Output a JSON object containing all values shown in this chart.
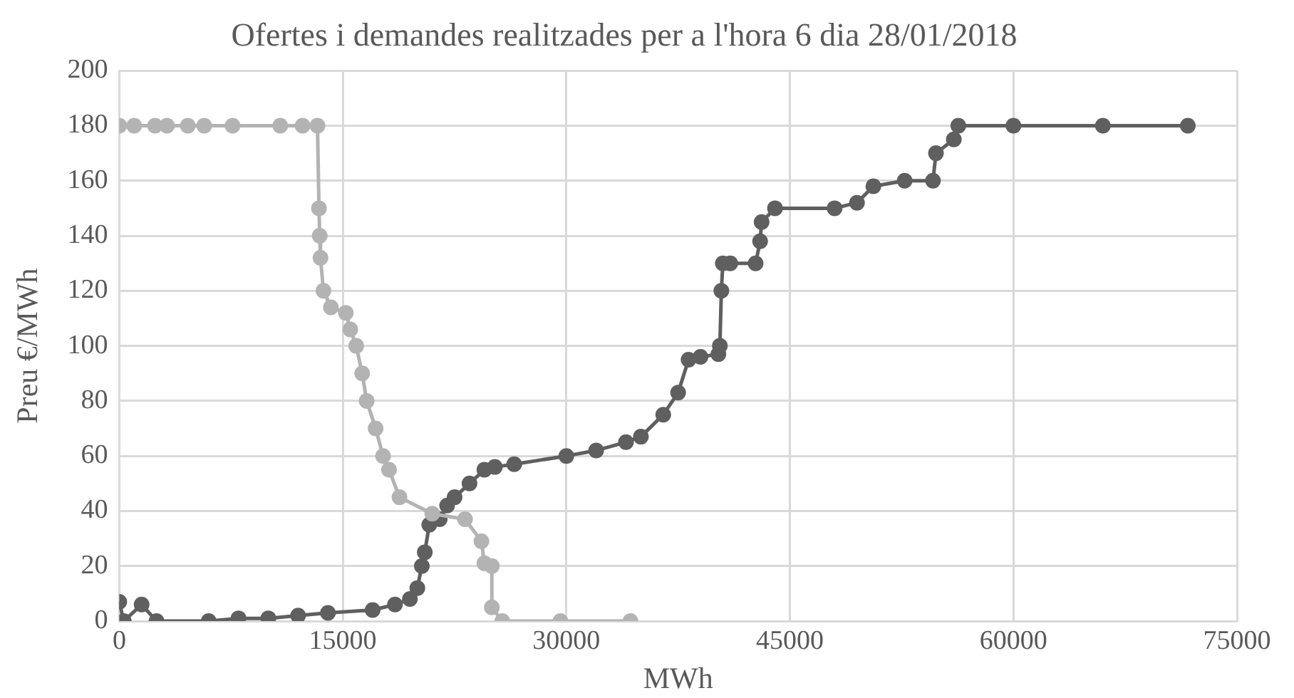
{
  "chart_data": {
    "type": "line",
    "title": "Ofertes i demandes realitzades per a l'hora 6 dia 28/01/2018",
    "xlabel": "MWh",
    "ylabel": "Preu €/MWh",
    "xlim": [
      0,
      75000
    ],
    "xticks": [
      0,
      15000,
      30000,
      45000,
      60000,
      75000
    ],
    "ylim": [
      0,
      200
    ],
    "yticks": [
      0,
      20,
      40,
      60,
      80,
      100,
      120,
      140,
      160,
      180,
      200
    ],
    "grid": true,
    "legend": false,
    "marker": "circle",
    "line_style": "solid",
    "series": [
      {
        "color": "#5f5f5f",
        "x": [
          0,
          300,
          1500,
          2500,
          6000,
          8000,
          10000,
          12000,
          14000,
          17000,
          18500,
          19500,
          20000,
          20300,
          20500,
          20800,
          21500,
          22000,
          22500,
          23500,
          24500,
          25200,
          26500,
          30000,
          32000,
          34000,
          35000,
          36500,
          37500,
          38200,
          39000,
          40200,
          40300,
          40400,
          40500,
          41000,
          42700,
          43000,
          43100,
          44000,
          48000,
          49500,
          50600,
          52700,
          54600,
          54800,
          56000,
          56300,
          60000,
          66000,
          71700
        ],
        "values": [
          7,
          0,
          6,
          0,
          0,
          1,
          1,
          2,
          3,
          4,
          6,
          8,
          12,
          20,
          25,
          35,
          37,
          42,
          45,
          50,
          55,
          56,
          57,
          60,
          62,
          65,
          67,
          75,
          83,
          95,
          96,
          97,
          100,
          120,
          130,
          130,
          130,
          138,
          145,
          150,
          150,
          152,
          158,
          160,
          160,
          170,
          175,
          180,
          180,
          180,
          180
        ]
      },
      {
        "color": "#b3b3b3",
        "x": [
          0,
          1000,
          2400,
          3200,
          4600,
          5700,
          7600,
          10800,
          12300,
          13300,
          13400,
          13450,
          13500,
          13700,
          14200,
          15200,
          15500,
          15900,
          16300,
          16600,
          17200,
          17700,
          18100,
          18800,
          21000,
          23200,
          24300,
          24500,
          25000,
          25000,
          25700,
          29600,
          34300
        ],
        "values": [
          180,
          180,
          180,
          180,
          180,
          180,
          180,
          180,
          180,
          180,
          150,
          140,
          132,
          120,
          114,
          112,
          106,
          100,
          90,
          80,
          70,
          60,
          55,
          45,
          39,
          37,
          29,
          21,
          20,
          5,
          0,
          0,
          0
        ]
      }
    ]
  }
}
